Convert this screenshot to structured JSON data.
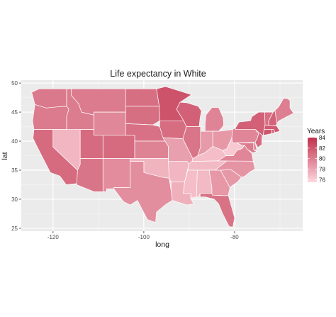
{
  "chart_data": {
    "type": "choropleth-map",
    "title": "Life expectancy in White",
    "xlabel": "long",
    "ylabel": "lat",
    "xlim": [
      -127,
      -65
    ],
    "ylim": [
      24.5,
      50.5
    ],
    "x_ticks": [
      -120,
      -100,
      -80
    ],
    "y_ticks": [
      25,
      30,
      35,
      40,
      45,
      50
    ],
    "grid": true,
    "legend": {
      "title": "Years",
      "position": "right",
      "min": 75.5,
      "max": 84,
      "ticks": [
        84,
        82,
        80,
        78,
        76
      ],
      "color_low": "#fdd7de",
      "color_high": "#c0304c"
    },
    "states": [
      {
        "name": "Washington",
        "value": 80.3
      },
      {
        "name": "Oregon",
        "value": 80.2
      },
      {
        "name": "California",
        "value": 81.0
      },
      {
        "name": "Nevada",
        "value": 77.2
      },
      {
        "name": "Idaho",
        "value": 80.1
      },
      {
        "name": "Montana",
        "value": 80.2
      },
      {
        "name": "Wyoming",
        "value": 79.5
      },
      {
        "name": "Utah",
        "value": 81.0
      },
      {
        "name": "Arizona",
        "value": 80.5
      },
      {
        "name": "Colorado",
        "value": 81.0
      },
      {
        "name": "New Mexico",
        "value": 79.3
      },
      {
        "name": "North Dakota",
        "value": 80.8
      },
      {
        "name": "South Dakota",
        "value": 80.8
      },
      {
        "name": "Nebraska",
        "value": 80.7
      },
      {
        "name": "Kansas",
        "value": 79.8
      },
      {
        "name": "Oklahoma",
        "value": 77.3
      },
      {
        "name": "Texas",
        "value": 79.2
      },
      {
        "name": "Minnesota",
        "value": 82.2
      },
      {
        "name": "Iowa",
        "value": 80.9
      },
      {
        "name": "Missouri",
        "value": 78.3
      },
      {
        "name": "Arkansas",
        "value": 77.2
      },
      {
        "name": "Louisiana",
        "value": 77.5
      },
      {
        "name": "Wisconsin",
        "value": 81.5
      },
      {
        "name": "Illinois",
        "value": 80.5
      },
      {
        "name": "Michigan",
        "value": 79.7
      },
      {
        "name": "Indiana",
        "value": 78.6
      },
      {
        "name": "Ohio",
        "value": 78.7
      },
      {
        "name": "Kentucky",
        "value": 76.8
      },
      {
        "name": "Tennessee",
        "value": 77.0
      },
      {
        "name": "Mississippi",
        "value": 76.8
      },
      {
        "name": "Alabama",
        "value": 77.0
      },
      {
        "name": "Georgia",
        "value": 78.7
      },
      {
        "name": "Florida",
        "value": 80.6
      },
      {
        "name": "South Carolina",
        "value": 78.7
      },
      {
        "name": "North Carolina",
        "value": 78.9
      },
      {
        "name": "Virginia",
        "value": 79.6
      },
      {
        "name": "West Virginia",
        "value": 76.2
      },
      {
        "name": "Maryland",
        "value": 80.2
      },
      {
        "name": "Delaware",
        "value": 79.6
      },
      {
        "name": "Pennsylvania",
        "value": 79.6
      },
      {
        "name": "New Jersey",
        "value": 81.0
      },
      {
        "name": "New York",
        "value": 81.5
      },
      {
        "name": "Connecticut",
        "value": 82.0
      },
      {
        "name": "Rhode Island",
        "value": 81.4
      },
      {
        "name": "Massachusetts",
        "value": 81.8
      },
      {
        "name": "Vermont",
        "value": 80.8
      },
      {
        "name": "New Hampshire",
        "value": 81.4
      },
      {
        "name": "Maine",
        "value": 80.0
      }
    ]
  }
}
